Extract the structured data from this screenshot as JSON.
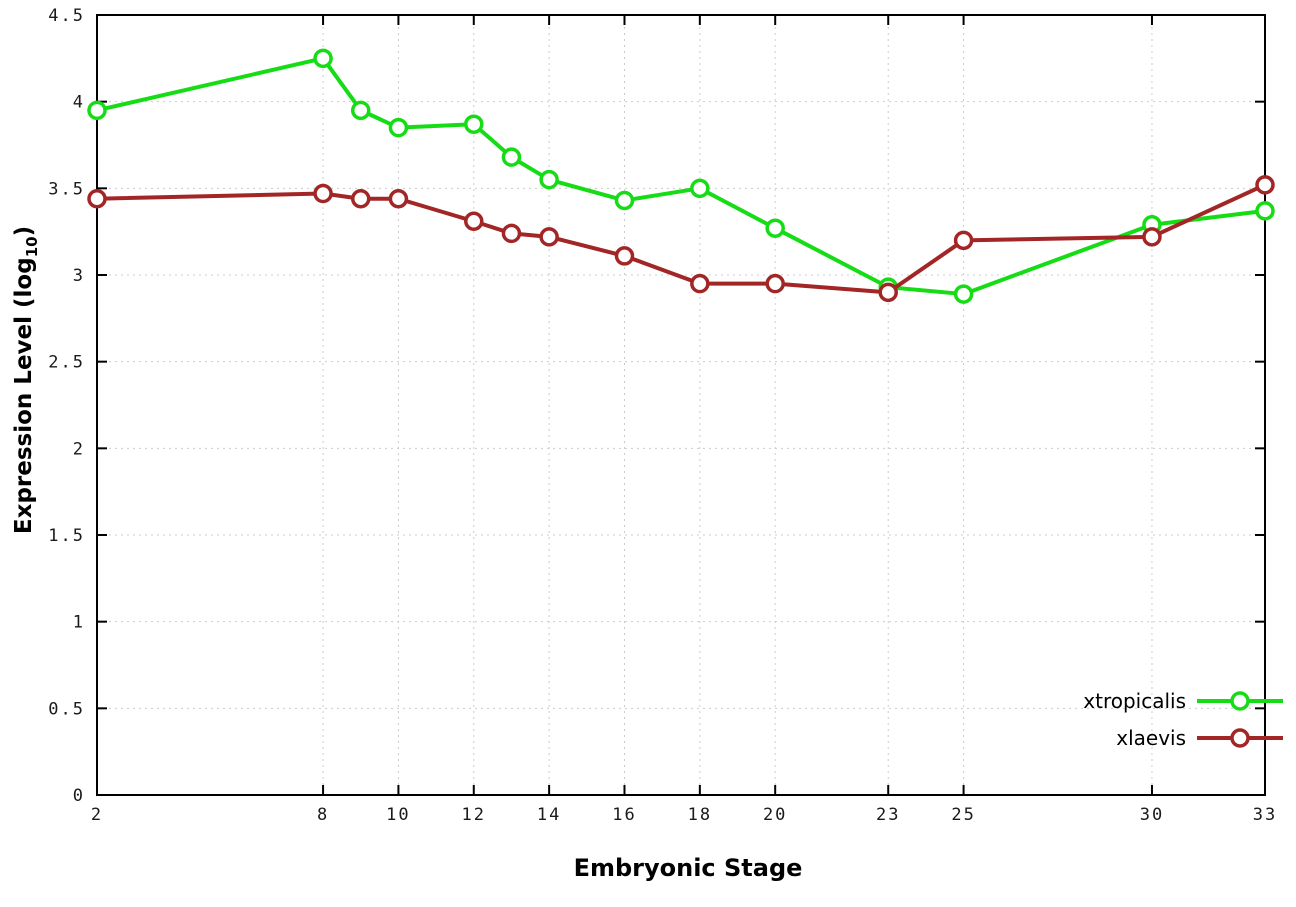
{
  "chart_data": {
    "type": "line",
    "title": "",
    "xlabel": "Embryonic Stage",
    "ylabel_prefix": "Expression Level (log",
    "ylabel_sub": "10",
    "ylabel_suffix": ")",
    "x": [
      2,
      8,
      9,
      10,
      12,
      13,
      14,
      16,
      18,
      20,
      23,
      25,
      30,
      33
    ],
    "series": [
      {
        "name": "xtropicalis",
        "color": "#16dc16",
        "values": [
          3.95,
          4.25,
          3.95,
          3.85,
          3.87,
          3.68,
          3.55,
          3.43,
          3.5,
          3.27,
          2.93,
          2.89,
          3.29,
          3.37
        ]
      },
      {
        "name": "xlaevis",
        "color": "#a32626",
        "values": [
          3.44,
          3.47,
          3.44,
          3.44,
          3.31,
          3.24,
          3.22,
          3.11,
          2.95,
          2.95,
          2.9,
          3.2,
          3.22,
          3.52
        ]
      }
    ],
    "xlim": [
      2,
      33
    ],
    "ylim": [
      0,
      4.5
    ],
    "xticks": [
      2,
      8,
      10,
      12,
      14,
      16,
      18,
      20,
      23,
      25,
      30,
      33
    ],
    "xtick_labels": [
      "2",
      "8",
      "10",
      "12",
      "14",
      "16",
      "18",
      "20",
      "23",
      "25",
      "30",
      "33"
    ],
    "yticks": [
      0,
      0.5,
      1,
      1.5,
      2,
      2.5,
      3,
      3.5,
      4,
      4.5
    ],
    "ytick_labels": [
      "0",
      "0.5",
      "1",
      "1.5",
      "2",
      "2.5",
      "3",
      "3.5",
      "4",
      "4.5"
    ],
    "grid": true,
    "legend_position": "bottom-right",
    "marker": "open-circle"
  }
}
